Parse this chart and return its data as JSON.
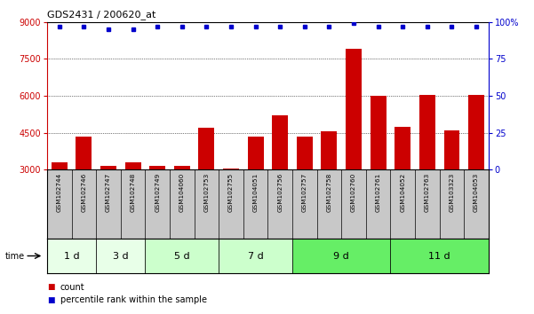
{
  "title": "GDS2431 / 200620_at",
  "samples": [
    "GSM102744",
    "GSM102746",
    "GSM102747",
    "GSM102748",
    "GSM102749",
    "GSM104060",
    "GSM102753",
    "GSM102755",
    "GSM104051",
    "GSM102756",
    "GSM102757",
    "GSM102758",
    "GSM102760",
    "GSM102761",
    "GSM104052",
    "GSM102763",
    "GSM103323",
    "GSM104053"
  ],
  "counts": [
    3300,
    4350,
    3150,
    3300,
    3150,
    3150,
    4700,
    3050,
    4350,
    5200,
    4350,
    4550,
    7900,
    6000,
    4750,
    6050,
    4600,
    6050
  ],
  "percentile_ranks": [
    97,
    97,
    95,
    95,
    97,
    97,
    97,
    97,
    97,
    97,
    97,
    97,
    99,
    97,
    97,
    97,
    97,
    97
  ],
  "time_groups": [
    {
      "label": "1 d",
      "start": 0,
      "end": 2
    },
    {
      "label": "3 d",
      "start": 2,
      "end": 4
    },
    {
      "label": "5 d",
      "start": 4,
      "end": 7
    },
    {
      "label": "7 d",
      "start": 7,
      "end": 10
    },
    {
      "label": "9 d",
      "start": 10,
      "end": 14
    },
    {
      "label": "11 d",
      "start": 14,
      "end": 18
    }
  ],
  "group_colors": [
    "#e8ffe8",
    "#e8ffe8",
    "#ccffcc",
    "#ccffcc",
    "#66ee66",
    "#66ee66"
  ],
  "ylim_left": [
    3000,
    9000
  ],
  "ylim_right": [
    0,
    100
  ],
  "yticks_left": [
    3000,
    4500,
    6000,
    7500,
    9000
  ],
  "yticks_right": [
    0,
    25,
    50,
    75,
    100
  ],
  "bar_color": "#cc0000",
  "dot_color": "#0000cc",
  "label_bg_color": "#c8c8c8",
  "legend_count_color": "#cc0000",
  "legend_dot_color": "#0000cc",
  "fig_width": 6.01,
  "fig_height": 3.54,
  "dpi": 100
}
